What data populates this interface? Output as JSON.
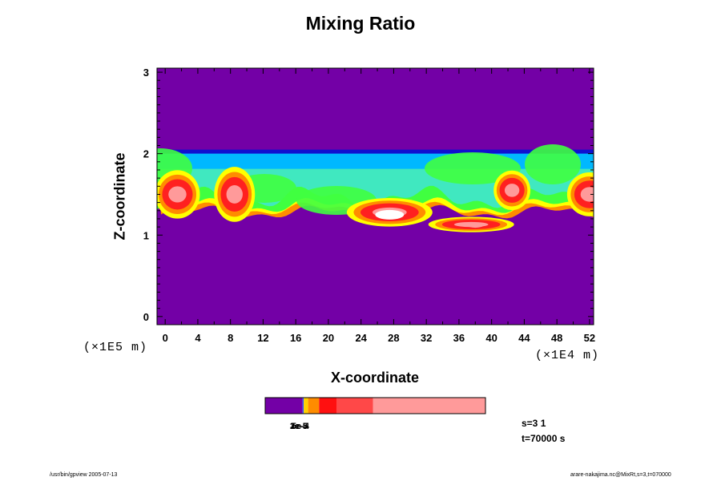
{
  "chart_data": {
    "type": "heatmap",
    "title": "Mixing Ratio",
    "xlabel": "X-coordinate",
    "ylabel": "Z-coordinate",
    "x_unit": "(×1E4 m)",
    "y_unit": "(×1E5 m)",
    "xlim": [
      -1,
      52.5
    ],
    "ylim": [
      -0.1,
      3.05
    ],
    "x_ticks": [
      "0",
      "4",
      "8",
      "12",
      "16",
      "20",
      "24",
      "28",
      "32",
      "36",
      "40",
      "44",
      "48",
      "52"
    ],
    "y_ticks": [
      "0",
      "1",
      "2",
      "3"
    ],
    "background_color": "#7300a6",
    "cloud_layer": {
      "z_top": 2.03,
      "z_base": 1.2,
      "description_colors": [
        "#1010d0",
        "#00b8ff",
        "#40e8c0",
        "#40ff40",
        "#ffff00",
        "#ff8c00",
        "#ff2020",
        "#ff9a9a",
        "#ffffff"
      ]
    },
    "colorbar": {
      "segments": [
        {
          "color": "#7300a6",
          "width": 0.17
        },
        {
          "color": "#1e5aff",
          "width": 0.005
        },
        {
          "color": "#ffd000",
          "width": 0.02
        },
        {
          "color": "#ff8c00",
          "width": 0.05
        },
        {
          "color": "#ff1010",
          "width": 0.08
        },
        {
          "color": "#ff4848",
          "width": 0.165
        },
        {
          "color": "#ff9a9a",
          "width": 0.51
        }
      ],
      "labels": [
        "1e-5",
        "2e-5",
        "3e-5",
        "5e-4"
      ]
    }
  },
  "info": {
    "s_line": "s=3 1",
    "t_line": "t=70000 s"
  },
  "footer": {
    "left": "/usr/bin/gpview 2005-07-13",
    "right": "arare-nakajima.nc@MixRt,s=3,t=070000"
  }
}
